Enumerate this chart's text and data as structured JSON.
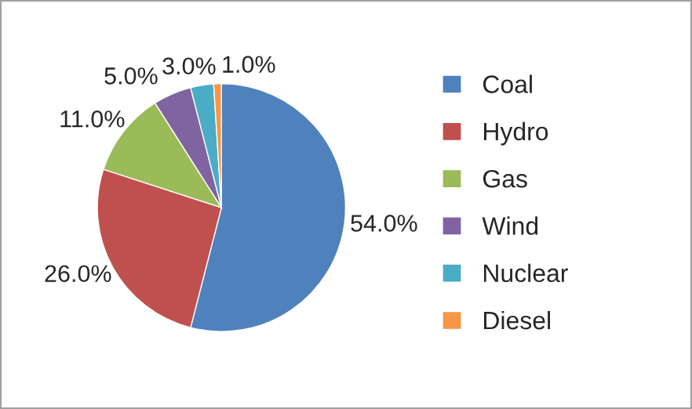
{
  "chart_data": {
    "type": "pie",
    "categories": [
      "Coal",
      "Hydro",
      "Gas",
      "Wind",
      "Nuclear",
      "Diesel"
    ],
    "values": [
      54,
      26,
      11,
      5,
      3,
      1
    ],
    "value_labels": [
      "54.0%",
      "26.0%",
      "11.0%",
      "5.0%",
      "3.0%",
      "1.0%"
    ],
    "colors": [
      "#4f81bd",
      "#c0504d",
      "#9bbb59",
      "#8064a2",
      "#4bacc6",
      "#f79646"
    ],
    "legend": "right"
  }
}
